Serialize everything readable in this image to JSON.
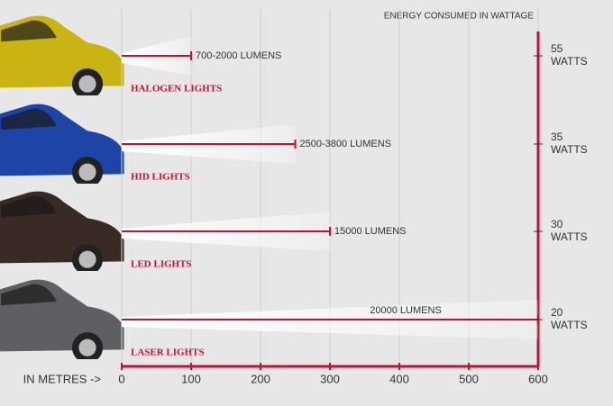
{
  "chart_data": {
    "type": "bar",
    "orientation": "horizontal",
    "categories": [
      "HALOGEN LIGHTS",
      "HID LIGHTS",
      "LED LIGHTS",
      "LASER LIGHTS"
    ],
    "values": [
      100,
      250,
      300,
      600
    ],
    "lumens_labels": [
      "700-2000 LUMENS",
      "2500-3800 LUMENS",
      "15000 LUMENS",
      "20000 LUMENS"
    ],
    "watts": [
      55,
      35,
      30,
      20
    ],
    "watts_unit": "WATTS",
    "car_colors": [
      "#c9b414",
      "#1f44a8",
      "#3a2a25",
      "#5f5f63"
    ],
    "color": "#c8102e",
    "xlim": [
      0,
      600
    ],
    "xticks": [
      0,
      100,
      200,
      300,
      400,
      500,
      600
    ],
    "xlabel": "IN METRES ->",
    "y2label": "ENERGY CONSUMED IN WATTAGE",
    "grid": true
  }
}
